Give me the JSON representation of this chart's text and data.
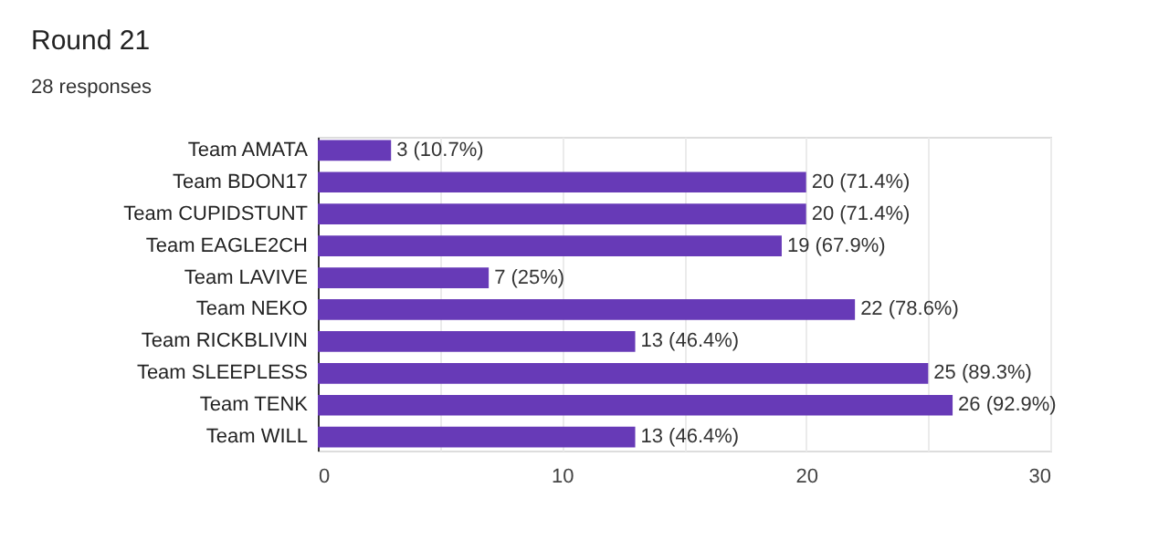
{
  "chart_data": {
    "type": "bar",
    "orientation": "horizontal",
    "title": "Round 21",
    "subtitle": "28 responses",
    "categories": [
      "Team AMATA",
      "Team BDON17",
      "Team CUPIDSTUNT",
      "Team EAGLE2CH",
      "Team LAVIVE",
      "Team NEKO",
      "Team RICKBLIVIN",
      "Team SLEEPLESS",
      "Team TENK",
      "Team WILL"
    ],
    "values": [
      3,
      20,
      20,
      19,
      7,
      22,
      13,
      25,
      26,
      13
    ],
    "value_labels": [
      "3 (10.7%)",
      "20 (71.4%)",
      "20 (71.4%)",
      "19 (67.9%)",
      "7 (25%)",
      "22 (78.6%)",
      "13 (46.4%)",
      "25 (89.3%)",
      "26 (92.9%)",
      "13 (46.4%)"
    ],
    "color": "#673ab7",
    "xlim": [
      0,
      30
    ],
    "xticks": [
      0,
      {
        "value": 5,
        "label": null
      },
      10,
      {
        "value": 15,
        "label": null
      },
      20,
      {
        "value": 25,
        "label": null
      },
      30
    ],
    "grid": "x"
  }
}
